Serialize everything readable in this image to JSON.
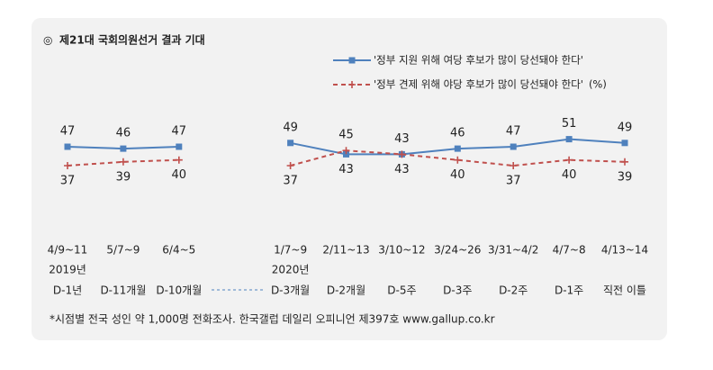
{
  "chart_data": {
    "type": "line",
    "title": "제21대 국회의원선거 결과 기대",
    "unit": "(%)",
    "categories": [
      "4/9~11",
      "5/7~9",
      "6/4~5",
      "1/7~9",
      "2/11~13",
      "3/10~12",
      "3/24~26",
      "3/31~4/2",
      "4/7~8",
      "4/13~14"
    ],
    "year_labels": [
      "2019년",
      null,
      null,
      "2020년",
      null,
      null,
      null,
      null,
      null,
      null
    ],
    "period_labels": [
      "D-1년",
      "D-11개월",
      "D-10개월",
      "D-3개월",
      "D-2개월",
      "D-5주",
      "D-3주",
      "D-2주",
      "D-1주",
      "직전 이틀"
    ],
    "series": [
      {
        "name": "'정부 지원 위해 여당 후보가 많이 당선돼야 한다'",
        "color": "#4f81bd",
        "values": [
          47,
          46,
          47,
          49,
          43,
          43,
          46,
          47,
          51,
          49
        ]
      },
      {
        "name": "'정부 견제 위해 야당 후보가 많이 당선돼야 한다'",
        "color": "#c0504d",
        "values": [
          37,
          39,
          40,
          37,
          45,
          43,
          40,
          37,
          40,
          39
        ]
      }
    ],
    "note": "*시점별 전국 성인 약 1,000명 전화조사. 한국갤럽 데일리 오피니언 제397호 www.gallup.co.kr"
  }
}
